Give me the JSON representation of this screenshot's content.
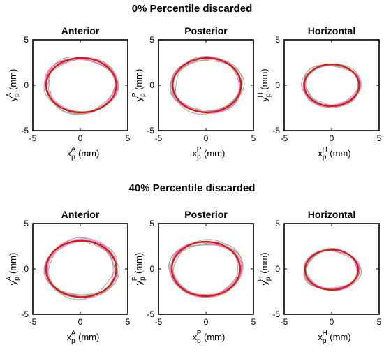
{
  "figure": {
    "rows": [
      {
        "title": "0% Percentile discarded"
      },
      {
        "title": "40% Percentile discarded"
      }
    ]
  },
  "colors": {
    "fit": "#cc2200",
    "trial": "#a0a0a0",
    "raw": "#ff66cc",
    "axis": "#000000"
  },
  "chart_data": [
    {
      "type": "line",
      "row": 0,
      "title": "Anterior",
      "plane": "A",
      "xlabel": "x_p^A (mm)",
      "ylabel": "y_p^A (mm)",
      "xlim": [
        -5,
        5
      ],
      "ylim": [
        -5,
        5
      ],
      "xticks": [
        "-5",
        "0",
        "5"
      ],
      "yticks": [
        "5",
        "0",
        "-5"
      ],
      "grid": false,
      "fit_ellipse": {
        "cx": 0.1,
        "cy": 0.0,
        "rx": 3.7,
        "ry": 3.0
      }
    },
    {
      "type": "line",
      "row": 0,
      "title": "Posterior",
      "plane": "P",
      "xlabel": "x_p^P (mm)",
      "ylabel": "y_p^P (mm)",
      "xlim": [
        -5,
        5
      ],
      "ylim": [
        -5,
        5
      ],
      "xticks": [
        "-5",
        "0",
        "5"
      ],
      "yticks": [
        "5",
        "0",
        "-5"
      ],
      "grid": false,
      "fit_ellipse": {
        "cx": 0.1,
        "cy": 0.0,
        "rx": 3.6,
        "ry": 3.0
      }
    },
    {
      "type": "line",
      "row": 0,
      "title": "Horizontal",
      "plane": "H",
      "xlabel": "x_p^H (mm)",
      "ylabel": "y_p^H (mm)",
      "xlim": [
        -5,
        5
      ],
      "ylim": [
        -5,
        5
      ],
      "xticks": [
        "-5",
        "0",
        "5"
      ],
      "yticks": [
        "5",
        "0",
        "-5"
      ],
      "grid": false,
      "fit_ellipse": {
        "cx": 0.0,
        "cy": 0.0,
        "rx": 2.9,
        "ry": 2.3
      }
    },
    {
      "type": "line",
      "row": 1,
      "title": "Anterior",
      "plane": "A",
      "xlabel": "x_p^A (mm)",
      "ylabel": "y_p^A (mm)",
      "xlim": [
        -5,
        5
      ],
      "ylim": [
        -5,
        5
      ],
      "xticks": [
        "-5",
        "0",
        "5"
      ],
      "yticks": [
        "5",
        "0",
        "-5"
      ],
      "grid": false,
      "fit_ellipse": {
        "cx": 0.1,
        "cy": 0.0,
        "rx": 3.7,
        "ry": 3.1
      }
    },
    {
      "type": "line",
      "row": 1,
      "title": "Posterior",
      "plane": "P",
      "xlabel": "x_p^P (mm)",
      "ylabel": "y_p^P (mm)",
      "xlim": [
        -5,
        5
      ],
      "ylim": [
        -5,
        5
      ],
      "xticks": [
        "-5",
        "0",
        "5"
      ],
      "yticks": [
        "5",
        "0",
        "-5"
      ],
      "grid": false,
      "fit_ellipse": {
        "cx": 0.0,
        "cy": 0.0,
        "rx": 3.6,
        "ry": 3.0
      }
    },
    {
      "type": "line",
      "row": 1,
      "title": "Horizontal",
      "plane": "H",
      "xlabel": "x_p^H (mm)",
      "ylabel": "y_p^H (mm)",
      "xlim": [
        -5,
        5
      ],
      "ylim": [
        -5,
        5
      ],
      "xticks": [
        "-5",
        "0",
        "5"
      ],
      "yticks": [
        "5",
        "0",
        "-5"
      ],
      "grid": false,
      "fit_ellipse": {
        "cx": 0.0,
        "cy": -0.1,
        "rx": 2.8,
        "ry": 2.2
      }
    }
  ]
}
